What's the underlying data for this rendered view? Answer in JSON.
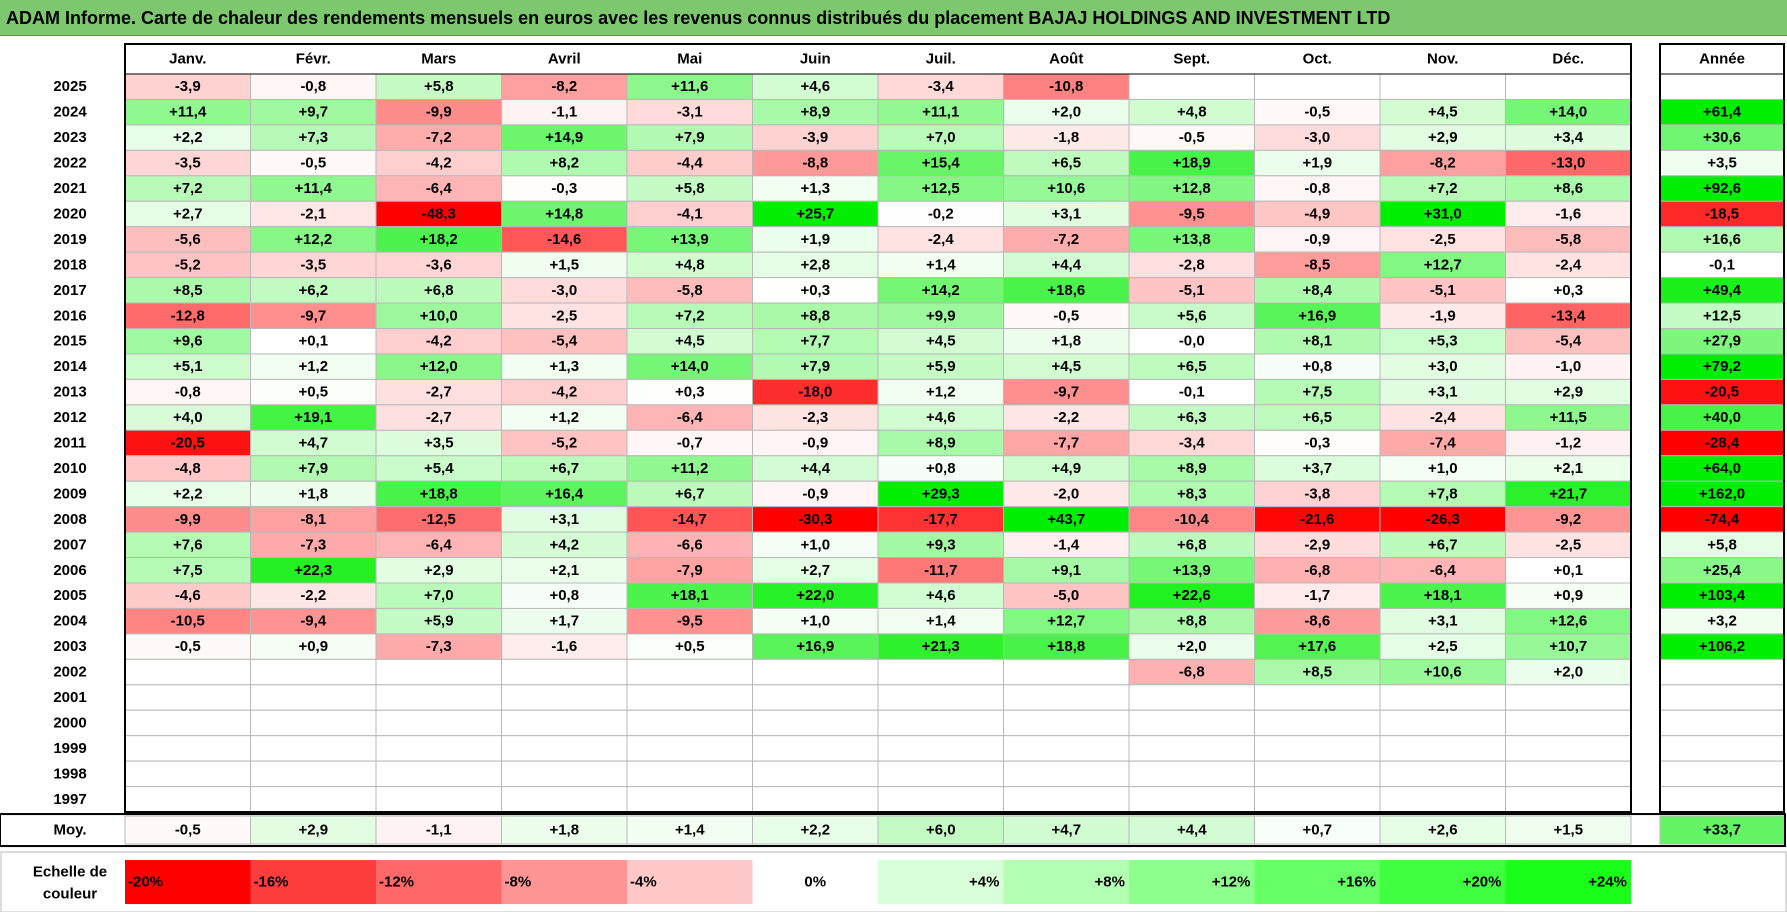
{
  "title": "ADAM Informe. Carte de chaleur des rendements mensuels en euros avec les revenus connus distribués du placement BAJAJ HOLDINGS AND INVESTMENT LTD",
  "chart_data": {
    "type": "heatmap",
    "columns": [
      "Janv.",
      "Févr.",
      "Mars",
      "Avril",
      "Mai",
      "Juin",
      "Juil.",
      "Août",
      "Sept.",
      "Oct.",
      "Nov.",
      "Déc."
    ],
    "year_header": "Année",
    "rows": [
      {
        "year": "2025",
        "months": [
          "-3,9",
          "-0,8",
          "+5,8",
          "-8,2",
          "+11,6",
          "+4,6",
          "-3,4",
          "-10,8",
          "",
          "",
          "",
          ""
        ],
        "annual": ""
      },
      {
        "year": "2024",
        "months": [
          "+11,4",
          "+9,7",
          "-9,9",
          "-1,1",
          "-3,1",
          "+8,9",
          "+11,1",
          "+2,0",
          "+4,8",
          "-0,5",
          "+4,5",
          "+14,0"
        ],
        "annual": "+61,4"
      },
      {
        "year": "2023",
        "months": [
          "+2,2",
          "+7,3",
          "-7,2",
          "+14,9",
          "+7,9",
          "-3,9",
          "+7,0",
          "-1,8",
          "-0,5",
          "-3,0",
          "+2,9",
          "+3,4"
        ],
        "annual": "+30,6"
      },
      {
        "year": "2022",
        "months": [
          "-3,5",
          "-0,5",
          "-4,2",
          "+8,2",
          "-4,4",
          "-8,8",
          "+15,4",
          "+6,5",
          "+18,9",
          "+1,9",
          "-8,2",
          "-13,0"
        ],
        "annual": "+3,5"
      },
      {
        "year": "2021",
        "months": [
          "+7,2",
          "+11,4",
          "-6,4",
          "-0,3",
          "+5,8",
          "+1,3",
          "+12,5",
          "+10,6",
          "+12,8",
          "-0,8",
          "+7,2",
          "+8,6"
        ],
        "annual": "+92,6"
      },
      {
        "year": "2020",
        "months": [
          "+2,7",
          "-2,1",
          "-48,3",
          "+14,8",
          "-4,1",
          "+25,7",
          "-0,2",
          "+3,1",
          "-9,5",
          "-4,9",
          "+31,0",
          "-1,6"
        ],
        "annual": "-18,5"
      },
      {
        "year": "2019",
        "months": [
          "-5,6",
          "+12,2",
          "+18,2",
          "-14,6",
          "+13,9",
          "+1,9",
          "-2,4",
          "-7,2",
          "+13,8",
          "-0,9",
          "-2,5",
          "-5,8"
        ],
        "annual": "+16,6"
      },
      {
        "year": "2018",
        "months": [
          "-5,2",
          "-3,5",
          "-3,6",
          "+1,5",
          "+4,8",
          "+2,8",
          "+1,4",
          "+4,4",
          "-2,8",
          "-8,5",
          "+12,7",
          "-2,4"
        ],
        "annual": "-0,1"
      },
      {
        "year": "2017",
        "months": [
          "+8,5",
          "+6,2",
          "+6,8",
          "-3,0",
          "-5,8",
          "+0,3",
          "+14,2",
          "+18,6",
          "-5,1",
          "+8,4",
          "-5,1",
          "+0,3"
        ],
        "annual": "+49,4"
      },
      {
        "year": "2016",
        "months": [
          "-12,8",
          "-9,7",
          "+10,0",
          "-2,5",
          "+7,2",
          "+8,8",
          "+9,9",
          "-0,5",
          "+5,6",
          "+16,9",
          "-1,9",
          "-13,4"
        ],
        "annual": "+12,5"
      },
      {
        "year": "2015",
        "months": [
          "+9,6",
          "+0,1",
          "-4,2",
          "-5,4",
          "+4,5",
          "+7,7",
          "+4,5",
          "+1,8",
          "-0,0",
          "+8,1",
          "+5,3",
          "-5,4"
        ],
        "annual": "+27,9"
      },
      {
        "year": "2014",
        "months": [
          "+5,1",
          "+1,2",
          "+12,0",
          "+1,3",
          "+14,0",
          "+7,9",
          "+5,9",
          "+4,5",
          "+6,5",
          "+0,8",
          "+3,0",
          "-1,0"
        ],
        "annual": "+79,2"
      },
      {
        "year": "2013",
        "months": [
          "-0,8",
          "+0,5",
          "-2,7",
          "-4,2",
          "+0,3",
          "-18,0",
          "+1,2",
          "-9,7",
          "-0,1",
          "+7,5",
          "+3,1",
          "+2,9"
        ],
        "annual": "-20,5"
      },
      {
        "year": "2012",
        "months": [
          "+4,0",
          "+19,1",
          "-2,7",
          "+1,2",
          "-6,4",
          "-2,3",
          "+4,6",
          "-2,2",
          "+6,3",
          "+6,5",
          "-2,4",
          "+11,5"
        ],
        "annual": "+40,0"
      },
      {
        "year": "2011",
        "months": [
          "-20,5",
          "+4,7",
          "+3,5",
          "-5,2",
          "-0,7",
          "-0,9",
          "+8,9",
          "-7,7",
          "-3,4",
          "-0,3",
          "-7,4",
          "-1,2"
        ],
        "annual": "-28,4"
      },
      {
        "year": "2010",
        "months": [
          "-4,8",
          "+7,9",
          "+5,4",
          "+6,7",
          "+11,2",
          "+4,4",
          "+0,8",
          "+4,9",
          "+8,9",
          "+3,7",
          "+1,0",
          "+2,1"
        ],
        "annual": "+64,0"
      },
      {
        "year": "2009",
        "months": [
          "+2,2",
          "+1,8",
          "+18,8",
          "+16,4",
          "+6,7",
          "-0,9",
          "+29,3",
          "-2,0",
          "+8,3",
          "-3,8",
          "+7,8",
          "+21,7"
        ],
        "annual": "+162,0"
      },
      {
        "year": "2008",
        "months": [
          "-9,9",
          "-8,1",
          "-12,5",
          "+3,1",
          "-14,7",
          "-30,3",
          "-17,7",
          "+43,7",
          "-10,4",
          "-21,6",
          "-26,3",
          "-9,2"
        ],
        "annual": "-74,4"
      },
      {
        "year": "2007",
        "months": [
          "+7,6",
          "-7,3",
          "-6,4",
          "+4,2",
          "-6,6",
          "+1,0",
          "+9,3",
          "-1,4",
          "+6,8",
          "-2,9",
          "+6,7",
          "-2,5"
        ],
        "annual": "+5,8"
      },
      {
        "year": "2006",
        "months": [
          "+7,5",
          "+22,3",
          "+2,9",
          "+2,1",
          "-7,9",
          "+2,7",
          "-11,7",
          "+9,1",
          "+13,9",
          "-6,8",
          "-6,4",
          "+0,1"
        ],
        "annual": "+25,4"
      },
      {
        "year": "2005",
        "months": [
          "-4,6",
          "-2,2",
          "+7,0",
          "+0,8",
          "+18,1",
          "+22,0",
          "+4,6",
          "-5,0",
          "+22,6",
          "-1,7",
          "+18,1",
          "+0,9"
        ],
        "annual": "+103,4"
      },
      {
        "year": "2004",
        "months": [
          "-10,5",
          "-9,4",
          "+5,9",
          "+1,7",
          "-9,5",
          "+1,0",
          "+1,4",
          "+12,7",
          "+8,8",
          "-8,6",
          "+3,1",
          "+12,6"
        ],
        "annual": "+3,2"
      },
      {
        "year": "2003",
        "months": [
          "-0,5",
          "+0,9",
          "-7,3",
          "-1,6",
          "+0,5",
          "+16,9",
          "+21,3",
          "+18,8",
          "+2,0",
          "+17,6",
          "+2,5",
          "+10,7"
        ],
        "annual": "+106,2"
      },
      {
        "year": "2002",
        "months": [
          "",
          "",
          "",
          "",
          "",
          "",
          "",
          "",
          "-6,8",
          "+8,5",
          "+10,6",
          "+2,0"
        ],
        "annual": ""
      },
      {
        "year": "2001",
        "months": [
          "",
          "",
          "",
          "",
          "",
          "",
          "",
          "",
          "",
          "",
          "",
          ""
        ],
        "annual": ""
      },
      {
        "year": "2000",
        "months": [
          "",
          "",
          "",
          "",
          "",
          "",
          "",
          "",
          "",
          "",
          "",
          ""
        ],
        "annual": ""
      },
      {
        "year": "1999",
        "months": [
          "",
          "",
          "",
          "",
          "",
          "",
          "",
          "",
          "",
          "",
          "",
          ""
        ],
        "annual": ""
      },
      {
        "year": "1998",
        "months": [
          "",
          "",
          "",
          "",
          "",
          "",
          "",
          "",
          "",
          "",
          "",
          ""
        ],
        "annual": ""
      },
      {
        "year": "1997",
        "months": [
          "",
          "",
          "",
          "",
          "",
          "",
          "",
          "",
          "",
          "",
          "",
          ""
        ],
        "annual": ""
      }
    ],
    "average": {
      "label": "Moy.",
      "months": [
        "-0,5",
        "+2,9",
        "-1,1",
        "+1,8",
        "+1,4",
        "+2,2",
        "+6,0",
        "+4,7",
        "+4,4",
        "+0,7",
        "+2,6",
        "+1,5"
      ],
      "annual": "+33,7"
    },
    "scale": {
      "label_line1": "Echelle de",
      "label_line2": "couleur",
      "stops": [
        {
          "label": "-20%",
          "color": "#ff0000"
        },
        {
          "label": "-16%",
          "color": "#ff3d3d"
        },
        {
          "label": "-12%",
          "color": "#ff6868"
        },
        {
          "label": "-8%",
          "color": "#ff9494"
        },
        {
          "label": "-4%",
          "color": "#ffc8c8"
        },
        {
          "label": "0%",
          "color": "#ffffff"
        },
        {
          "label": "+4%",
          "color": "#d9ffd9"
        },
        {
          "label": "+8%",
          "color": "#b3ffb3"
        },
        {
          "label": "+12%",
          "color": "#8cff8c"
        },
        {
          "label": "+16%",
          "color": "#66ff66"
        },
        {
          "label": "+20%",
          "color": "#40ff40"
        },
        {
          "label": "+24%",
          "color": "#1aff1a"
        }
      ]
    },
    "colors": {
      "title_bg": "#7dc86f",
      "negative_max": "#ff0000",
      "positive_max": "#00ee00",
      "grid": "#b8b8b8",
      "frame": "#000000"
    }
  }
}
